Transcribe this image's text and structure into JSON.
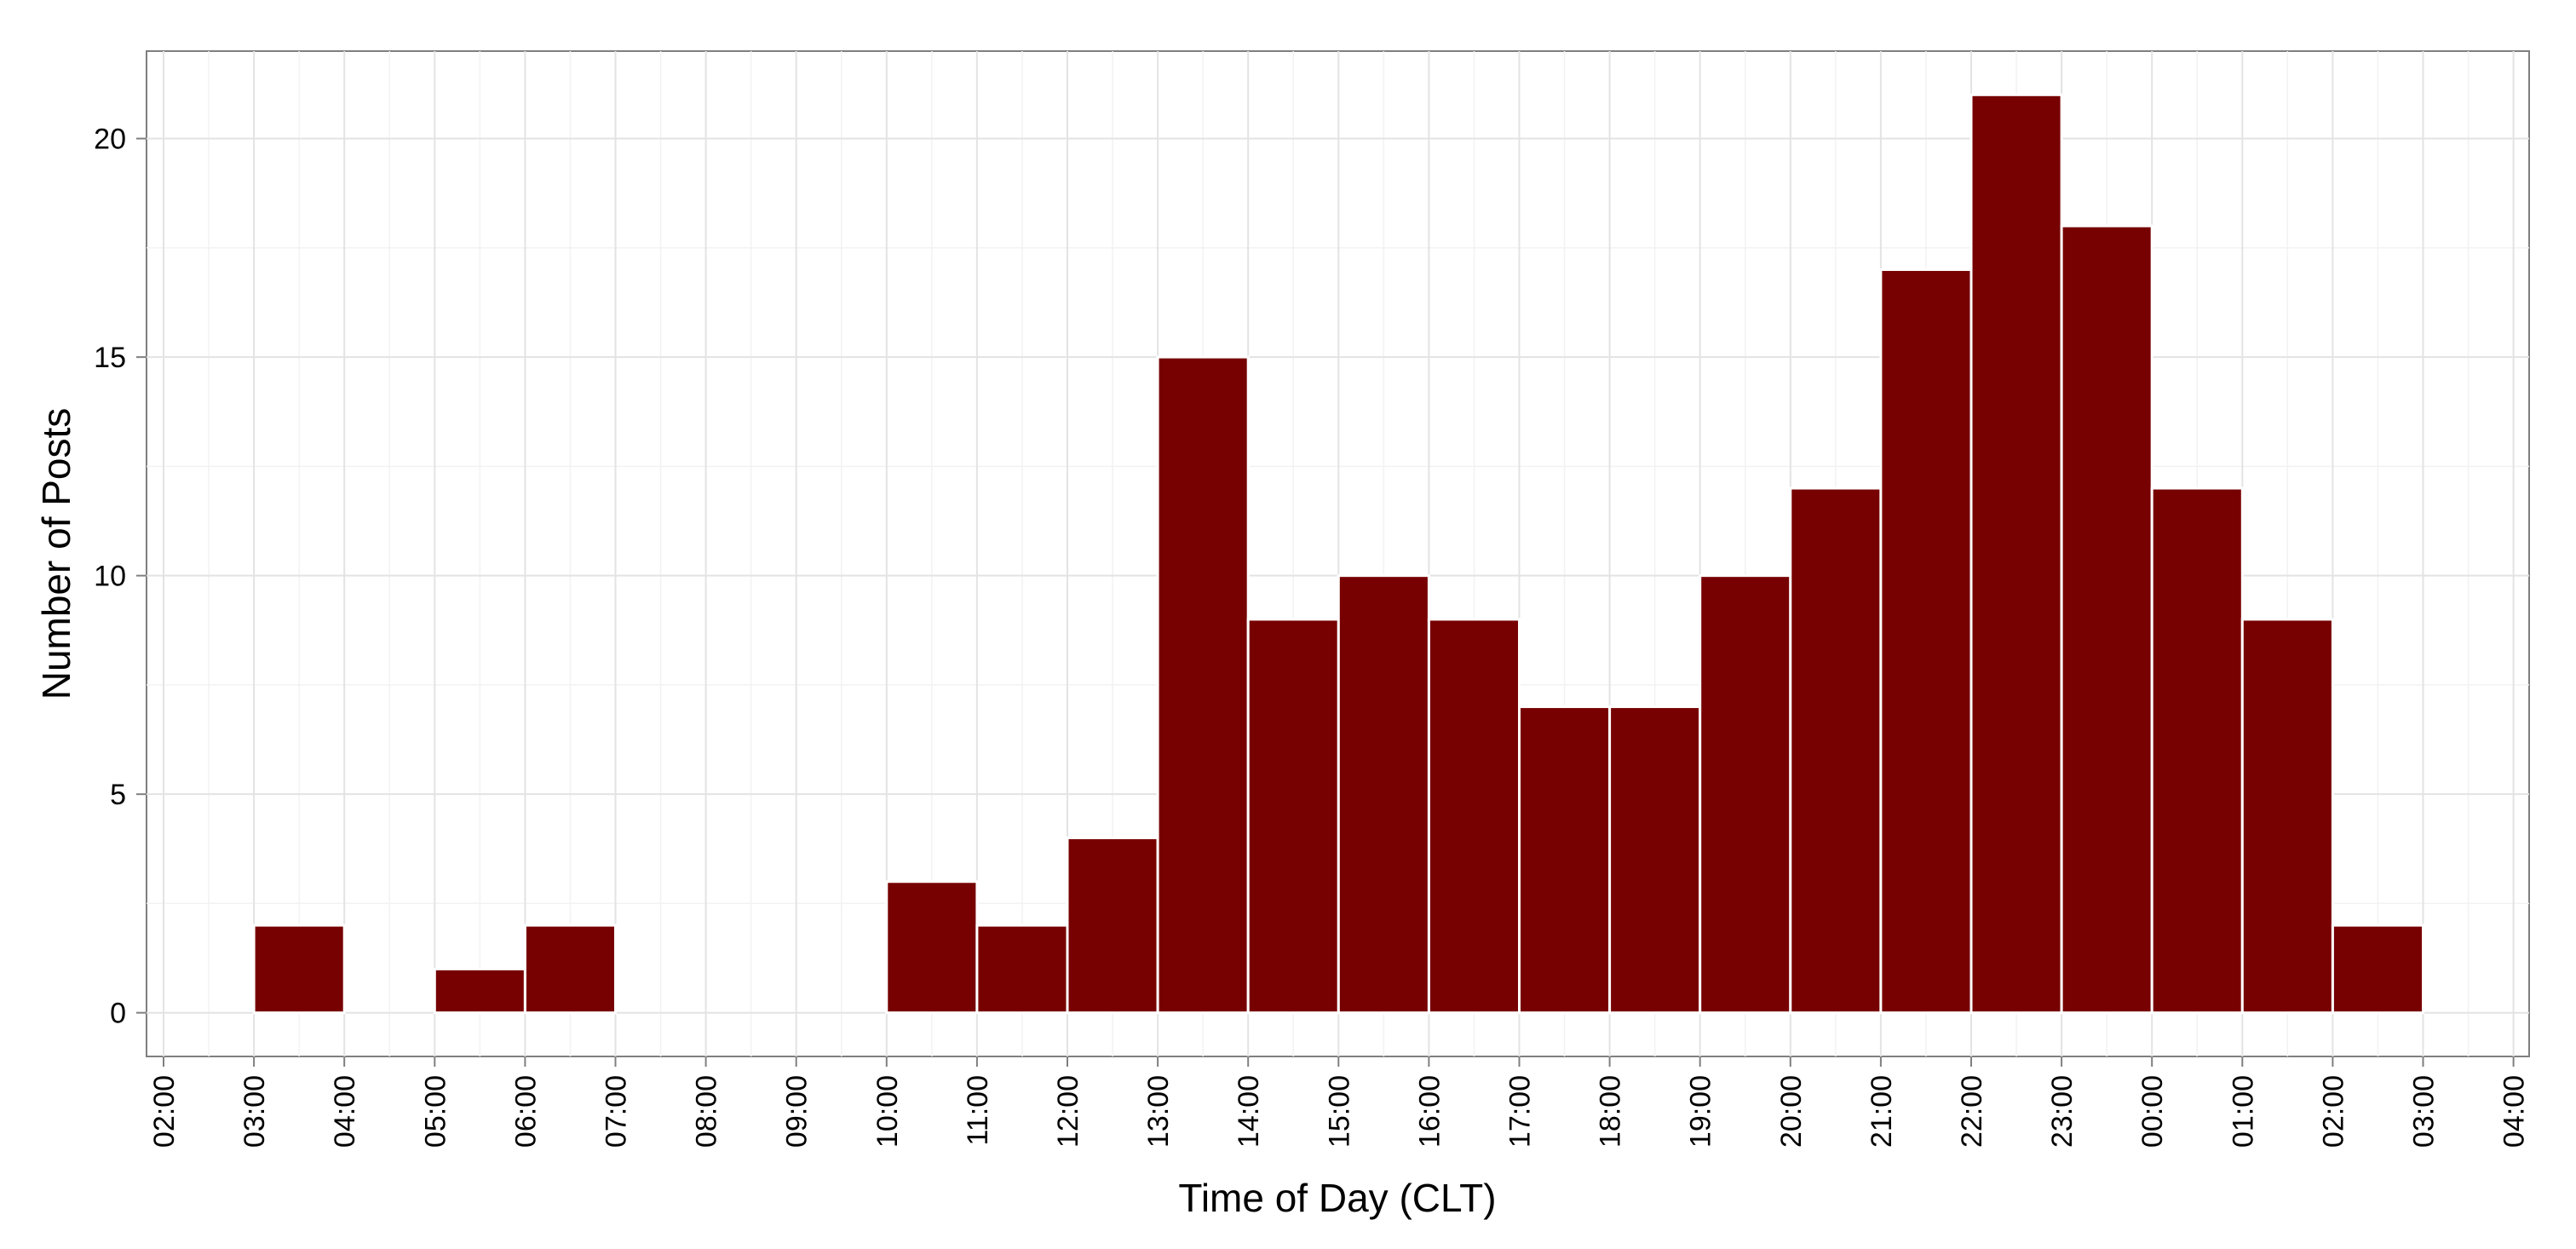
{
  "chart_data": {
    "type": "bar",
    "xlabel": "Time of Day (CLT)",
    "ylabel": "Number of Posts",
    "x_tick_labels": [
      "02:00",
      "03:00",
      "04:00",
      "05:00",
      "06:00",
      "07:00",
      "08:00",
      "09:00",
      "10:00",
      "11:00",
      "12:00",
      "13:00",
      "14:00",
      "15:00",
      "16:00",
      "17:00",
      "18:00",
      "19:00",
      "20:00",
      "21:00",
      "22:00",
      "23:00",
      "00:00",
      "01:00",
      "02:00",
      "03:00",
      "04:00"
    ],
    "y_ticks": [
      0,
      5,
      10,
      15,
      20
    ],
    "y_tick_labels": [
      "0",
      "5",
      "10",
      "15",
      "20"
    ],
    "ylim": [
      -1,
      22
    ],
    "bins": [
      {
        "start": "03:00",
        "end": "04:00",
        "value": 2
      },
      {
        "start": "05:00",
        "end": "06:00",
        "value": 1
      },
      {
        "start": "06:00",
        "end": "07:00",
        "value": 2
      },
      {
        "start": "10:00",
        "end": "11:00",
        "value": 3
      },
      {
        "start": "11:00",
        "end": "12:00",
        "value": 2
      },
      {
        "start": "12:00",
        "end": "13:00",
        "value": 4
      },
      {
        "start": "13:00",
        "end": "14:00",
        "value": 15
      },
      {
        "start": "14:00",
        "end": "15:00",
        "value": 9
      },
      {
        "start": "15:00",
        "end": "16:00",
        "value": 10
      },
      {
        "start": "16:00",
        "end": "17:00",
        "value": 9
      },
      {
        "start": "17:00",
        "end": "18:00",
        "value": 7
      },
      {
        "start": "18:00",
        "end": "19:00",
        "value": 7
      },
      {
        "start": "19:00",
        "end": "20:00",
        "value": 10
      },
      {
        "start": "20:00",
        "end": "21:00",
        "value": 12
      },
      {
        "start": "21:00",
        "end": "22:00",
        "value": 17
      },
      {
        "start": "22:00",
        "end": "23:00",
        "value": 21
      },
      {
        "start": "23:00",
        "end": "00:00",
        "value": 18
      },
      {
        "start": "00:00",
        "end": "01:00",
        "value": 12
      },
      {
        "start": "01:00",
        "end": "02:00",
        "value": 9
      },
      {
        "start": "02:00",
        "end": "03:00",
        "value": 2
      }
    ],
    "bar_color": "#770000",
    "grid": true,
    "legend": "none"
  }
}
